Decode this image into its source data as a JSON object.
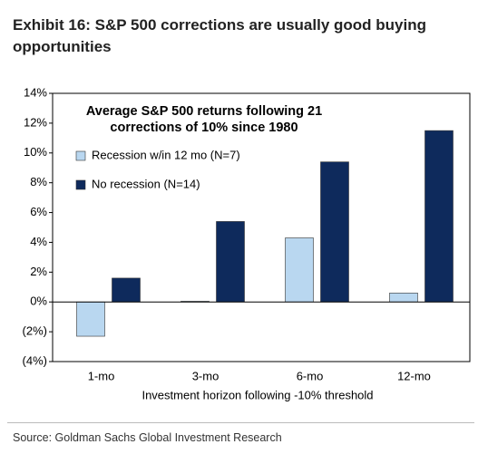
{
  "chart_data": {
    "type": "bar",
    "title": "Exhibit 16: S&P 500 corrections are usually good buying opportunities",
    "subtitle": "Average S&P 500 returns following 21 corrections of 10% since 1980",
    "x_label": "Investment horizon following -10% threshold",
    "source": "Source: Goldman Sachs Global Investment Research",
    "categories": [
      "1-mo",
      "3-mo",
      "6-mo",
      "12-mo"
    ],
    "series": [
      {
        "name": "Recession w/in 12 mo (N=7)",
        "color": "#b9d7f0",
        "values": [
          -2.3,
          0.05,
          4.3,
          0.6
        ]
      },
      {
        "name": "No recession (N=14)",
        "color": "#0e2a5c",
        "values": [
          1.6,
          5.4,
          9.4,
          11.5
        ]
      }
    ],
    "ylim": [
      -4,
      14
    ],
    "yticks": [
      {
        "value": -4,
        "label": "(4%)"
      },
      {
        "value": -2,
        "label": "(2%)"
      },
      {
        "value": 0,
        "label": "0%"
      },
      {
        "value": 2,
        "label": "2%"
      },
      {
        "value": 4,
        "label": "4%"
      },
      {
        "value": 6,
        "label": "6%"
      },
      {
        "value": 8,
        "label": "8%"
      },
      {
        "value": 10,
        "label": "10%"
      },
      {
        "value": 12,
        "label": "12%"
      },
      {
        "value": 14,
        "label": "14%"
      }
    ],
    "grid": false
  }
}
